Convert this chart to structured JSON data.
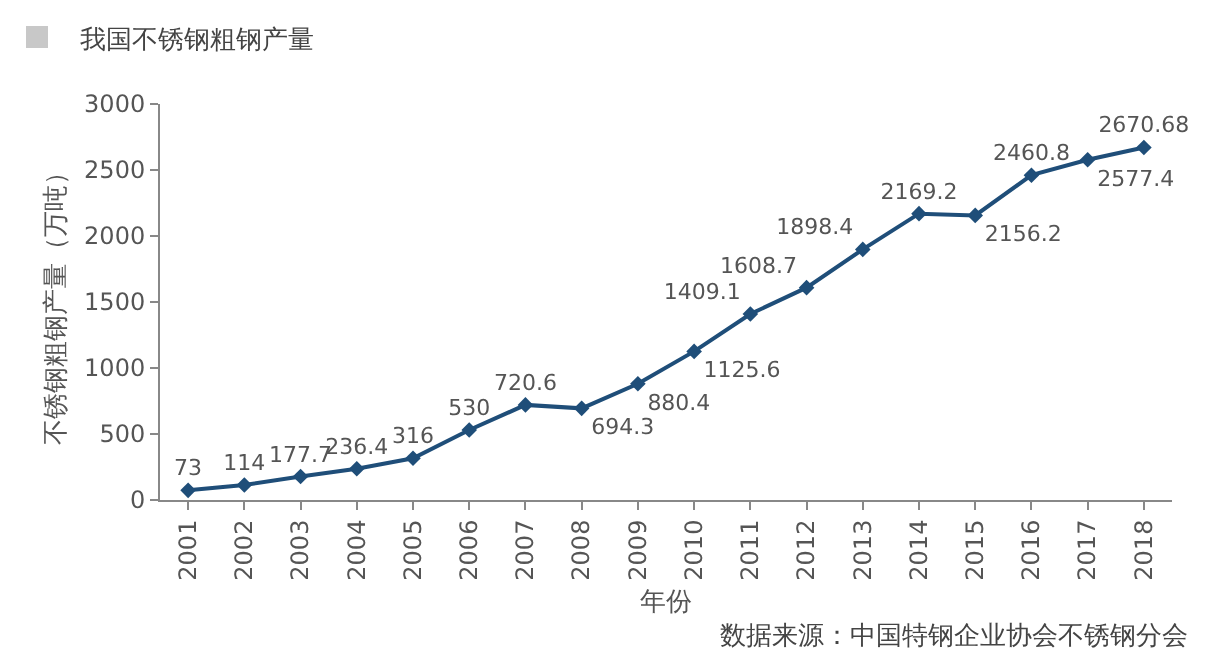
{
  "chart_data": {
    "type": "line",
    "title": "我国不锈钢粗钢产量",
    "xlabel": "年份",
    "ylabel": "不锈钢粗钢产量（万吨）",
    "categories": [
      "2001",
      "2002",
      "2003",
      "2004",
      "2005",
      "2006",
      "2007",
      "2008",
      "2009",
      "2010",
      "2011",
      "2012",
      "2013",
      "2014",
      "2015",
      "2016",
      "2017",
      "2018"
    ],
    "series": [
      {
        "color": "#1f4e79",
        "values": [
          73,
          114,
          177.7,
          236.4,
          316,
          530,
          720.6,
          694.3,
          880.4,
          1125.6,
          1409.1,
          1608.7,
          1898.4,
          2169.2,
          2156.2,
          2460.8,
          2577.4,
          2670.68
        ]
      }
    ],
    "ylim": [
      0,
      3000
    ],
    "yticks": [
      0,
      500,
      1000,
      1500,
      2000,
      2500,
      3000
    ],
    "grid": false,
    "legend": false,
    "marker": "diamond",
    "line_style": "solid",
    "data_labels": true,
    "annotations": [
      "数据来源：中国特钢企业协会不锈钢分会"
    ]
  }
}
